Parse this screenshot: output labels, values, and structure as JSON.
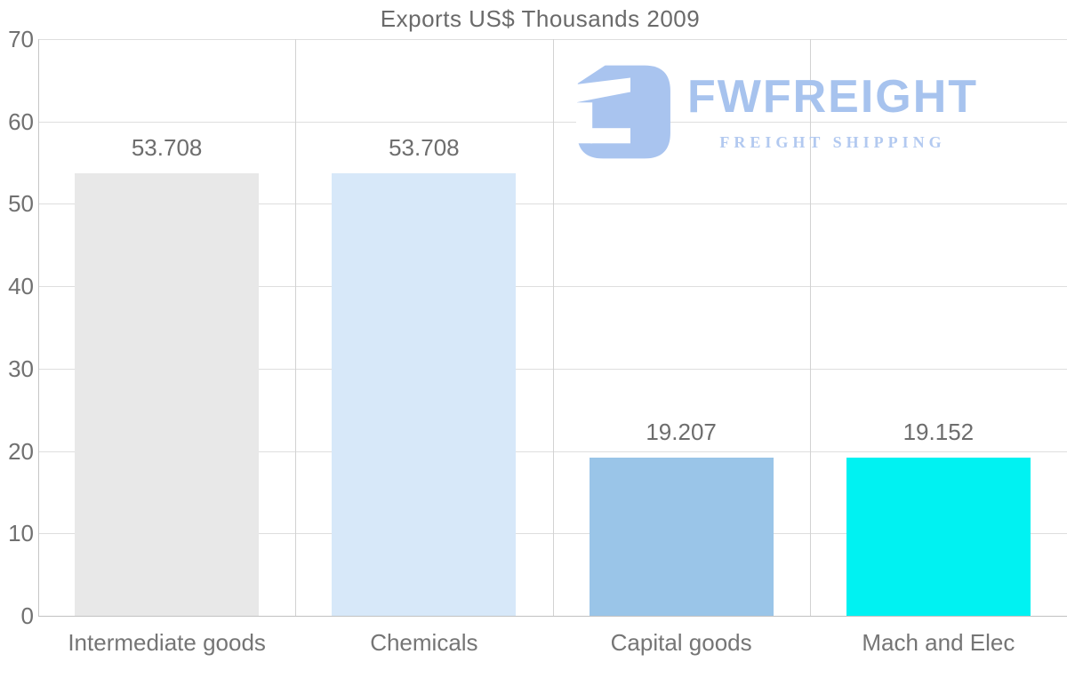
{
  "title": "Exports US$ Thousands 2009",
  "watermark": {
    "brand": "FWFREIGHT",
    "tagline": "FREIGHT SHIPPING",
    "color": "#a9c4ef"
  },
  "chart_data": {
    "type": "bar",
    "title": "Exports US$ Thousands 2009",
    "categories": [
      "Intermediate goods",
      "Chemicals",
      "Capital goods",
      "Mach and Elec"
    ],
    "values": [
      53.708,
      53.708,
      19.207,
      19.152
    ],
    "value_labels": [
      "53.708",
      "53.708",
      "19.207",
      "19.152"
    ],
    "bar_colors": [
      "#e8e8e8",
      "#d7e8f9",
      "#9ac5e8",
      "#00f2f2"
    ],
    "xlabel": "",
    "ylabel": "",
    "ylim": [
      0,
      70
    ],
    "yticks": [
      0,
      10,
      20,
      30,
      40,
      50,
      60,
      70
    ],
    "grid": true,
    "legend": false
  },
  "colors": {
    "title_text": "#6a6a6a",
    "tick_text": "#707070",
    "value_text": "#6d6d6d",
    "gridline": "#dedede",
    "axis_line": "#c2c2c2",
    "background": "#ffffff"
  }
}
